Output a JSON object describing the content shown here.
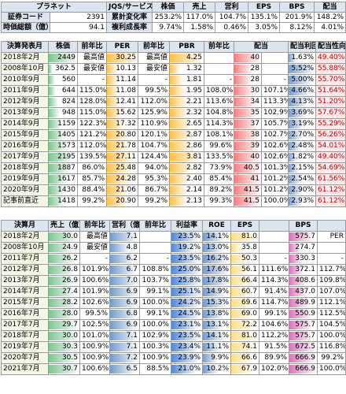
{
  "header_table": {
    "rows": [
      [
        "プラネット",
        "JQS/サービス",
        "株価",
        "売上",
        "営利",
        "EPS",
        "BPS",
        "配当"
      ],
      [
        "証券コード",
        "2391",
        "累計変化率",
        "253.2%",
        "117.0%",
        "104.7%",
        "135.1%",
        "201.9%",
        "148.2%"
      ],
      [
        "時価総額（億）",
        "94.1",
        "複利成長率",
        "9.74%",
        "1.58%",
        "0.46%",
        "3.05%",
        "8.12%",
        "4.01%"
      ]
    ]
  },
  "dividend_table": {
    "header": [
      "決算発表月",
      "株価",
      "前年比",
      "PER",
      "前年比",
      "PBR",
      "前年比",
      "配当",
      "配当利回り",
      "配当性向"
    ],
    "rows": [
      [
        "2018年2月",
        "2449",
        "最高値",
        "30.25",
        "最高値",
        "4.25",
        null,
        "40",
        null,
        "1.63%",
        "49.40%"
      ],
      [
        "2008年10月",
        "362.5",
        "最安値",
        "10.13",
        "最安値",
        "1.32",
        null,
        "28",
        null,
        "5.52%",
        "55.88%"
      ],
      [
        "2010年9月",
        "560",
        "-",
        "11.14",
        "-",
        "1.81",
        "-",
        "28",
        "-",
        "5.00%",
        "55.70%"
      ],
      [
        "2011年9月",
        "644",
        "115.0%",
        "11.08",
        "99.5%",
        "1.95",
        "108.0%",
        "30",
        "107.1%",
        "4.66%",
        "51.64%"
      ],
      [
        "2012年9月",
        "824",
        "128.0%",
        "12.41",
        "112.0%",
        "2.21",
        "113.6%",
        "34",
        "113.3%",
        "4.13%",
        "51.20%"
      ],
      [
        "2013年9月",
        "948",
        "115.0%",
        "15.62",
        "125.9%",
        "2.32",
        "104.8%",
        "35",
        "102.9%",
        "3.69%",
        "57.67%"
      ],
      [
        "2014年9月",
        "1159",
        "122.3%",
        "17.32",
        "110.9%",
        "2.65",
        "114.3%",
        "37",
        "105.7%",
        "3.19%",
        "55.29%"
      ],
      [
        "2015年9月",
        "1405",
        "121.2%",
        "20.80",
        "120.1%",
        "2.87",
        "108.1%",
        "38",
        "102.7%",
        "2.70%",
        "56.26%"
      ],
      [
        "2016年9月",
        "1573",
        "112.0%",
        "21.78",
        "104.7%",
        "2.86",
        "99.6%",
        "39",
        "102.6%",
        "2.48%",
        "54.01%"
      ],
      [
        "2017年9月",
        "2195",
        "139.5%",
        "27.11",
        "124.4%",
        "3.81",
        "133.5%",
        "40",
        "102.6%",
        "1.82%",
        "49.40%"
      ],
      [
        "2018年9月",
        "1887",
        "86.0%",
        "25.48",
        "94.0%",
        "2.82",
        "73.9%",
        "40.5",
        "101.3%",
        "2.15%",
        "54.69%"
      ],
      [
        "2019年9月",
        "1617",
        "85.7%",
        "24.28",
        "95.3%",
        "2.40",
        "85.4%",
        "41",
        "101.2%",
        "2.54%",
        "61.56%"
      ],
      [
        "2020年9月",
        "1430",
        "88.4%",
        "21.06",
        "86.7%",
        "2.14",
        "89.2%",
        "41.5",
        "101.2%",
        "2.90%",
        "61.12%"
      ],
      [
        "記事前直近",
        "1418",
        "99.2%",
        "20.90",
        "99.2%",
        "2.13",
        "99.3%",
        "41.5",
        "100.0%",
        "2.93%",
        "61.12%"
      ]
    ]
  },
  "earnings_table": {
    "header": [
      "決算月",
      "売上（億）",
      "前年比",
      "営利（億）",
      "前年比",
      "利益率",
      "ROE",
      "EPS",
      null,
      "BPS",
      null
    ],
    "rows": [
      [
        "2018年2月",
        "30.0",
        "最高値",
        "7.1",
        null,
        "23.5%",
        "14.1%",
        "81.0",
        null,
        "575.7",
        "PER"
      ],
      [
        "2008年10月",
        "24.9",
        "最安値",
        "4.8",
        null,
        "19.2%",
        "13.0%",
        "35.8",
        null,
        "274.7",
        null
      ],
      [
        "2011年7月",
        "26.2",
        "-",
        "6.2",
        "-",
        "23.5%",
        "16.2%",
        "50.3",
        "-",
        "330.3",
        "-"
      ],
      [
        "2012年7月",
        "26.8",
        "101.9%",
        "6.7",
        "108.8%",
        "25.0%",
        "17.6%",
        "56.1",
        "111.6%",
        "372.1",
        "112.7%"
      ],
      [
        "2013年7月",
        "26.9",
        "100.6%",
        "7.0",
        "103.7%",
        "25.8%",
        "17.8%",
        "66.4",
        "114.3%",
        "408.6",
        "109.8%"
      ],
      [
        "2014年7月",
        "27.4",
        "101.9%",
        "6.9",
        "99.1%",
        "25.1%",
        "14.9%",
        "60.7",
        "91.4%",
        "437.0",
        "107.0%"
      ],
      [
        "2015年7月",
        "28.2",
        "102.6%",
        "6.9",
        "100.0%",
        "24.2%",
        "15.3%",
        "69.6",
        "114.7%",
        "489.9",
        "112.1%"
      ],
      [
        "2016年7月",
        "28.0",
        "99.5%",
        "6.8",
        "99.1%",
        "24.5%",
        "13.8%",
        "69.0",
        "99.1%",
        "550.9",
        "112.5%"
      ],
      [
        "2017年7月",
        "29.7",
        "102.5%",
        "6.9",
        "100.0%",
        "23.1%",
        "13.1%",
        "72.2",
        "104.6%",
        "575.7",
        "104.5%"
      ],
      [
        "2018年7月",
        "30.0",
        "101.0%",
        "7.1",
        "102.9%",
        "23.5%",
        "14.1%",
        "81.0",
        "112.2%",
        "575.7",
        "100.0%"
      ],
      [
        "2019年7月",
        "30.3",
        "100.9%",
        "7.1",
        "100.3%",
        "23.4%",
        "11.1%",
        "74.1",
        "91.5%",
        "672.5",
        "116.8%"
      ],
      [
        "2020年7月",
        "30.5",
        "100.9%",
        "7.2",
        "100.9%",
        "23.9%",
        "9.9%",
        "66.6",
        "89.9%",
        "666.9",
        "99.2%"
      ],
      [
        "2021年7月",
        "30.7",
        "100.6%",
        "6.5",
        "88.5%",
        "21.0%",
        "10.2%",
        "67.9",
        "102.0%",
        "666.9",
        "100.0%"
      ]
    ]
  }
}
